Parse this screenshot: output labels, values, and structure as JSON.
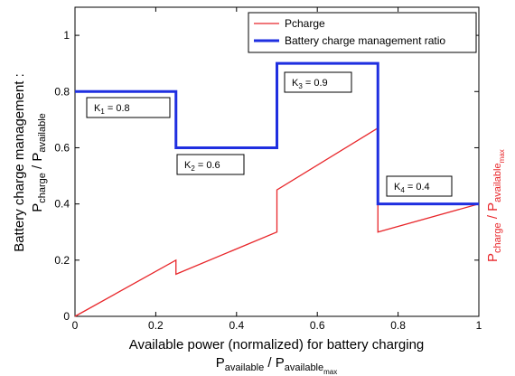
{
  "chart_data": {
    "type": "line",
    "x": [
      0,
      0.25,
      0.25,
      0.5,
      0.5,
      0.75,
      0.75,
      1
    ],
    "series": [
      {
        "name": "Pcharge",
        "color": "#e8262a",
        "values": [
          0,
          0.2,
          0.15,
          0.3,
          0.45,
          0.67,
          0.3,
          0.4
        ]
      },
      {
        "name": "Battery charge management ratio",
        "color": "#1f2fe0",
        "values": [
          0.8,
          0.8,
          0.6,
          0.6,
          0.9,
          0.9,
          0.4,
          0.4
        ]
      }
    ],
    "xlim": [
      0,
      1
    ],
    "xticks": [
      0,
      0.2,
      0.4,
      0.6,
      0.8,
      1
    ],
    "ylim": [
      0,
      1.1
    ],
    "yticks": [
      0,
      0.2,
      0.4,
      0.6,
      0.8,
      1
    ],
    "legend": "upper right",
    "xlabel": {
      "line1": "Available power (normalized) for battery charging",
      "line2": [
        "P",
        "available",
        " / P",
        "available",
        "max"
      ]
    },
    "ylabel": {
      "line1": "Battery charge management :",
      "line2": [
        "P",
        "charge",
        " / P",
        "available"
      ]
    },
    "y2label": [
      "P",
      "charge",
      " / P",
      "available",
      "max"
    ],
    "annotations": [
      {
        "base": "K",
        "sub": "1",
        "text": " = 0.8"
      },
      {
        "base": "K",
        "sub": "2",
        "text": " = 0.6"
      },
      {
        "base": "K",
        "sub": "3",
        "text": " = 0.9"
      },
      {
        "base": "K",
        "sub": "4",
        "text": " = 0.4"
      }
    ]
  }
}
